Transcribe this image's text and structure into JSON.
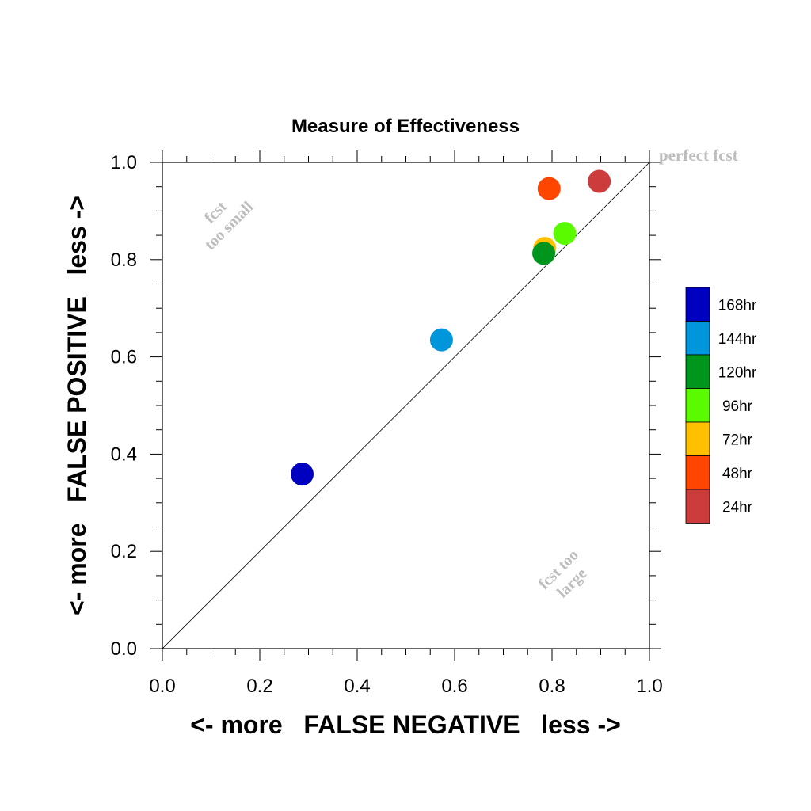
{
  "chart_data": {
    "type": "scatter",
    "title": "Measure of Effectiveness",
    "xlabel": "<- more   FALSE NEGATIVE   less ->",
    "ylabel": "<- more   FALSE POSITIVE   less ->",
    "xlim": [
      0.0,
      1.0
    ],
    "ylim": [
      0.0,
      1.0
    ],
    "xticks": [
      "0.0",
      "0.2",
      "0.4",
      "0.6",
      "0.8",
      "1.0"
    ],
    "yticks": [
      "0.0",
      "0.2",
      "0.4",
      "0.6",
      "0.8",
      "1.0"
    ],
    "grid": false,
    "legend_position": "right",
    "reference_line": {
      "from": [
        0.0,
        0.0
      ],
      "to": [
        1.0,
        1.0
      ]
    },
    "annotations": {
      "perfect": "perfect fcst",
      "small_1": "fcst",
      "small_2": "too small",
      "large_1": "fcst too",
      "large_2": "large"
    },
    "series": [
      {
        "name": "168hr",
        "color": "#0000c0",
        "x": 0.287,
        "y": 0.359
      },
      {
        "name": "144hr",
        "color": "#0096dc",
        "x": 0.573,
        "y": 0.635
      },
      {
        "name": "120hr",
        "color": "#00961e",
        "x": 0.783,
        "y": 0.813
      },
      {
        "name": "96hr",
        "color": "#5afa00",
        "x": 0.826,
        "y": 0.854
      },
      {
        "name": "72hr",
        "color": "#ffc000",
        "x": 0.785,
        "y": 0.823
      },
      {
        "name": "48hr",
        "color": "#ff4600",
        "x": 0.794,
        "y": 0.946
      },
      {
        "name": "24hr",
        "color": "#cd3c3c",
        "x": 0.897,
        "y": 0.961
      }
    ],
    "draw_order": [
      "168hr",
      "144hr",
      "72hr",
      "120hr",
      "96hr",
      "48hr",
      "24hr"
    ],
    "legend_order": [
      "168hr",
      "144hr",
      "120hr",
      "96hr",
      "72hr",
      "48hr",
      "24hr"
    ]
  }
}
